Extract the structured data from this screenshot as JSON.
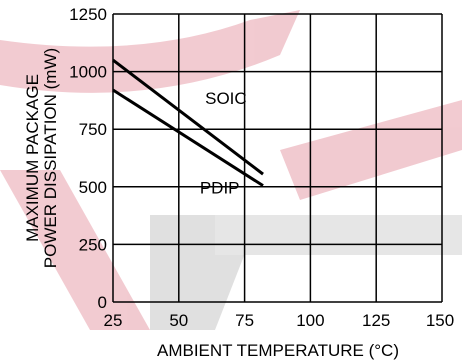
{
  "chart_data": {
    "type": "line",
    "title": "",
    "xlabel": "AMBIENT TEMPERATURE (°C)",
    "ylabel_line1": "MAXIMUM PACKAGE",
    "ylabel_line2": "POWER DISSIPATION (mW)",
    "xlim": [
      25,
      150
    ],
    "ylim": [
      0,
      1250
    ],
    "xticks": [
      "25",
      "50",
      "75",
      "100",
      "125",
      "150"
    ],
    "yticks": [
      "0",
      "250",
      "500",
      "750",
      "1000",
      "1250"
    ],
    "grid": true,
    "series": [
      {
        "name": "SOIC",
        "x": [
          25,
          82
        ],
        "y": [
          1050,
          555
        ]
      },
      {
        "name": "PDIP",
        "x": [
          25,
          82
        ],
        "y": [
          920,
          505
        ]
      }
    ],
    "colors": {
      "line": "#000000",
      "grid": "#000000",
      "watermark_red": "#e7a0ab",
      "watermark_grey": "#c8c8c8"
    }
  }
}
